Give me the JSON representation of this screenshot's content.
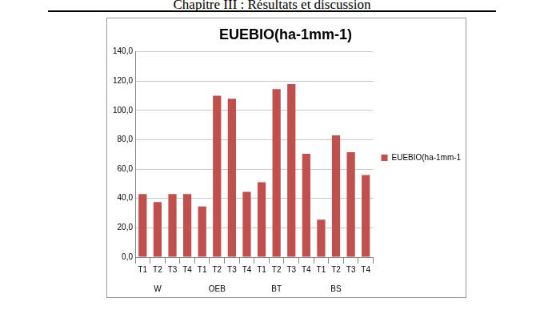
{
  "header": "Chapitre III : Résultats et discussion",
  "chart_data": {
    "type": "bar",
    "title": "EUEBIO(ha-1mm-1)",
    "categories": [
      "T1",
      "T2",
      "T3",
      "T4",
      "T1",
      "T2",
      "T3",
      "T4",
      "T1",
      "T2",
      "T3",
      "T4",
      "T1",
      "T2",
      "T3",
      "T4"
    ],
    "groups": [
      "W",
      "OEB",
      "BT",
      "BS"
    ],
    "series": [
      {
        "name": "EUEBIO(ha-1mm-1)",
        "color": "#c0504d",
        "values": [
          43,
          37.5,
          43,
          43,
          34.5,
          110,
          108,
          44.5,
          51,
          114.5,
          118,
          70.5,
          25.5,
          83,
          71.5,
          56
        ]
      }
    ],
    "ylim": [
      0,
      140
    ],
    "yticks": [
      {
        "value": 0,
        "label": "0,0"
      },
      {
        "value": 20,
        "label": "20,0"
      },
      {
        "value": 40,
        "label": "40,0"
      },
      {
        "value": 60,
        "label": "60,0"
      },
      {
        "value": 80,
        "label": "80,0"
      },
      {
        "value": 100,
        "label": "100,0"
      },
      {
        "value": 120,
        "label": "120,0"
      },
      {
        "value": 140,
        "label": "140,0"
      }
    ],
    "grid": true,
    "legend": "right"
  }
}
